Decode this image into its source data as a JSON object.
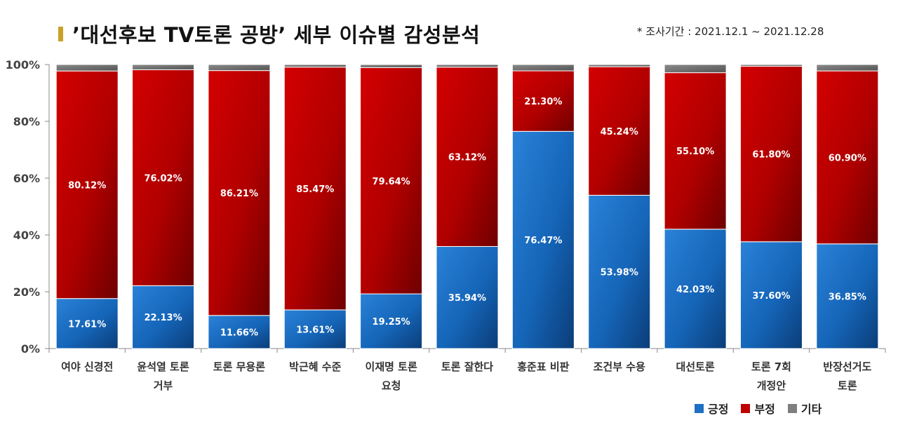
{
  "title": "’대선후보 TV토론 공방’ 세부 이슈별 감성분석",
  "period": "* 조사기간 : 2021.12.1 ~ 2021.12.28",
  "colors": {
    "positive": "#1f6fc4",
    "negative": "#c00000",
    "other": "#7f7f7f",
    "title_mark": "#c9a227"
  },
  "chart_data": {
    "type": "bar",
    "stacked": true,
    "ylim": [
      0,
      100
    ],
    "yticks": [
      "0%",
      "20%",
      "40%",
      "60%",
      "80%",
      "100%"
    ],
    "categories": [
      [
        "여야 신경전"
      ],
      [
        "윤석열 토론",
        "거부"
      ],
      [
        "토론 무용론"
      ],
      [
        "박근혜 수준"
      ],
      [
        "이재명 토론",
        "요청"
      ],
      [
        "토론 잘한다"
      ],
      [
        "홍준표 비판"
      ],
      [
        "조건부 수용"
      ],
      [
        "대선토론"
      ],
      [
        "토론 7회",
        "개정안"
      ],
      [
        "반장선거도",
        "토론"
      ]
    ],
    "series": [
      {
        "name": "긍정",
        "values": [
          17.61,
          22.13,
          11.66,
          13.61,
          19.25,
          35.94,
          76.47,
          53.98,
          42.03,
          37.6,
          36.85
        ],
        "labels": [
          "17.61%",
          "22.13%",
          "11.66%",
          "13.61%",
          "19.25%",
          "35.94%",
          "76.47%",
          "53.98%",
          "42.03%",
          "37.60%",
          "36.85%"
        ]
      },
      {
        "name": "부정",
        "values": [
          80.12,
          76.02,
          86.21,
          85.47,
          79.64,
          63.12,
          21.3,
          45.24,
          55.1,
          61.8,
          60.9
        ],
        "labels": [
          "80.12%",
          "76.02%",
          "86.21%",
          "85.47%",
          "79.64%",
          "63.12%",
          "21.30%",
          "45.24%",
          "55.10%",
          "61.80%",
          "60.90%"
        ]
      },
      {
        "name": "기타",
        "values": [
          2.27,
          1.85,
          2.13,
          0.92,
          1.11,
          0.94,
          2.23,
          0.78,
          2.87,
          0.6,
          2.25
        ]
      }
    ],
    "legend_position": "bottom-right"
  }
}
